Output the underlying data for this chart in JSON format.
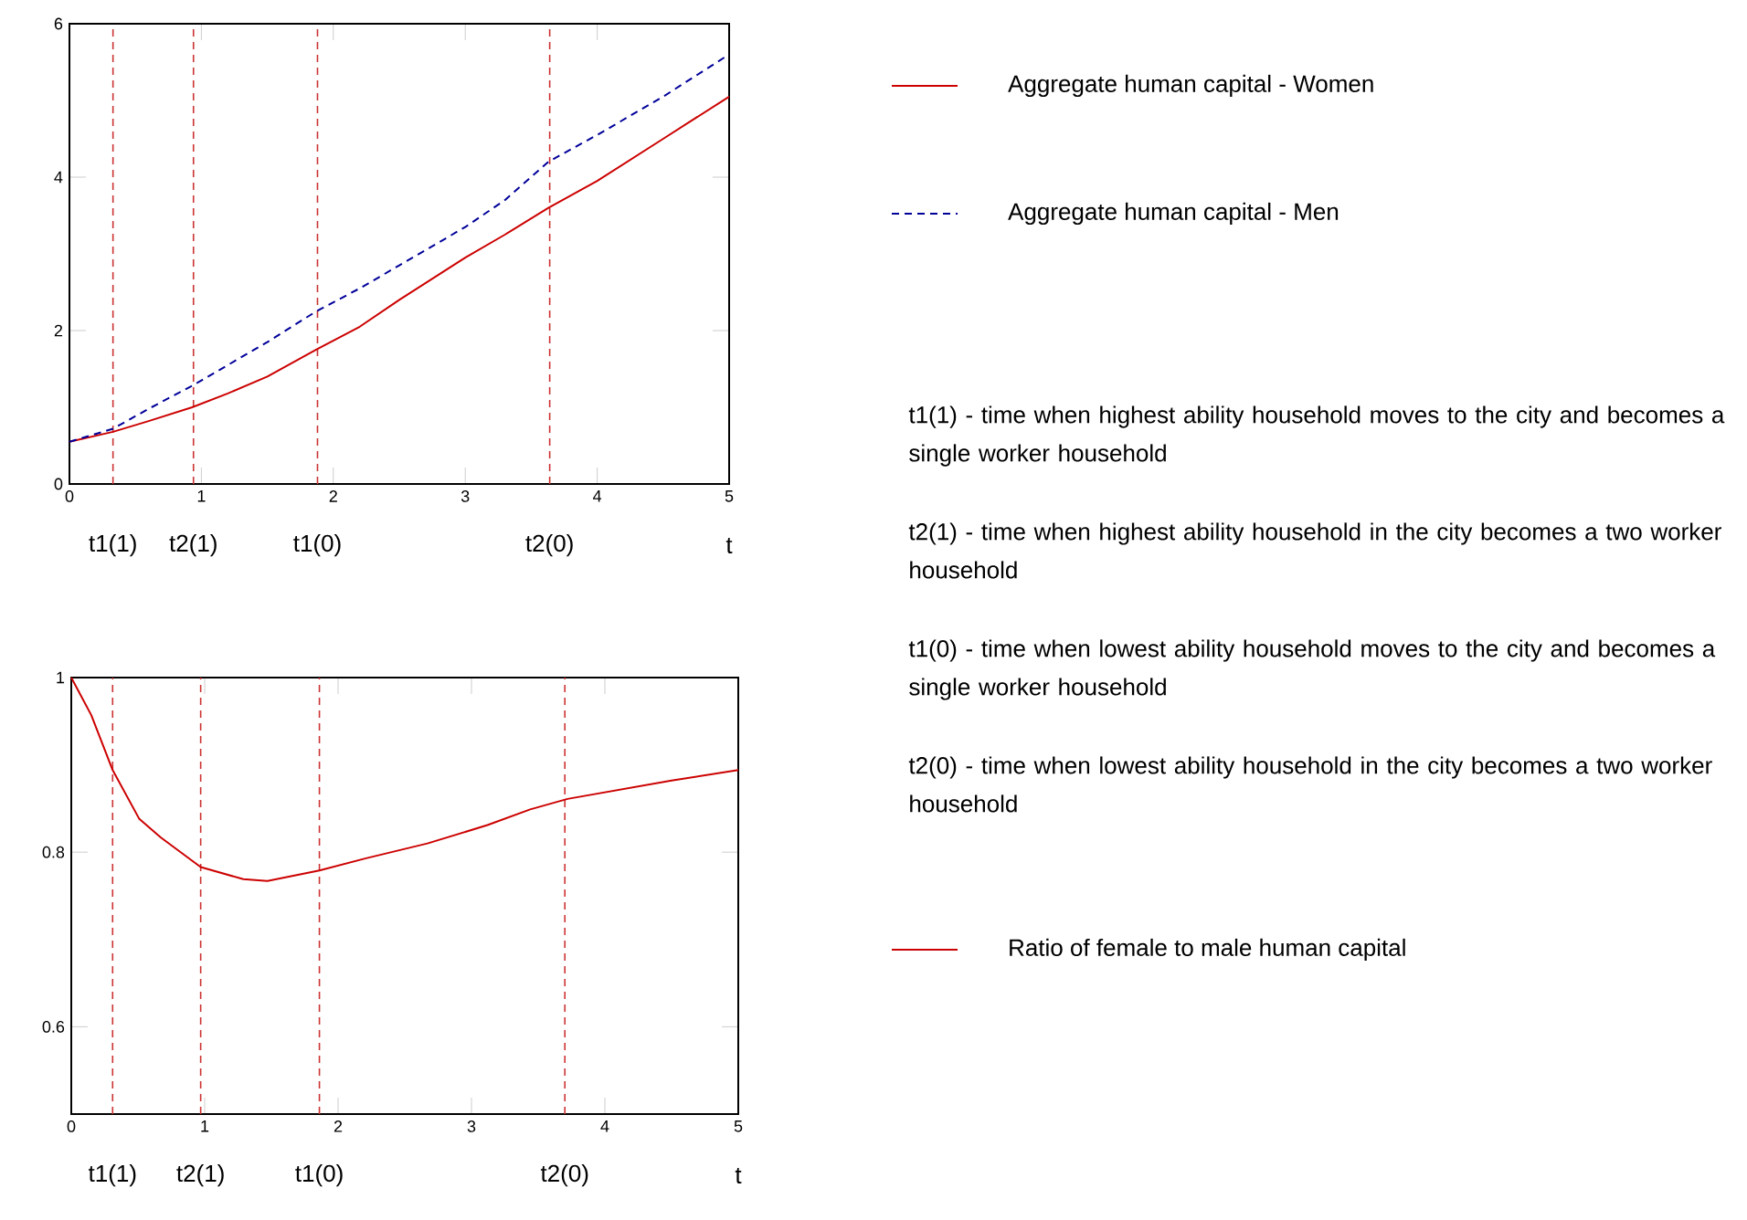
{
  "chart_data": [
    {
      "type": "line",
      "xlabel": "t",
      "xlim": [
        0,
        5
      ],
      "xticks": [
        0,
        1,
        2,
        3,
        4,
        5
      ],
      "ylim": [
        0,
        6
      ],
      "yticks": [
        0,
        2,
        4,
        6
      ],
      "legend": "right",
      "x": [
        0,
        0.33,
        0.6,
        0.93,
        1.2,
        1.5,
        1.87,
        2.2,
        2.5,
        3,
        3.3,
        3.63,
        4,
        4.5,
        5
      ],
      "series": [
        {
          "name": "Aggregate human capital - Women",
          "color": "#cc0000",
          "line_style": "solid",
          "values": [
            0.55,
            0.68,
            0.82,
            1.0,
            1.18,
            1.4,
            1.75,
            2.05,
            2.4,
            2.95,
            3.25,
            3.6,
            3.95,
            4.5,
            5.05
          ]
        },
        {
          "name": "Aggregate human capital - Men",
          "color": "#000099",
          "line_style": "dashed",
          "values": [
            0.55,
            0.72,
            0.98,
            1.28,
            1.55,
            1.85,
            2.25,
            2.55,
            2.85,
            3.35,
            3.7,
            4.2,
            4.55,
            5.05,
            5.6
          ]
        }
      ],
      "ref_lines": [
        {
          "axis": "x",
          "value": 0.33,
          "label": "t1(1)",
          "color": "#cc3333",
          "line_style": "dashed"
        },
        {
          "axis": "x",
          "value": 0.94,
          "label": "t2(1)",
          "color": "#cc3333",
          "line_style": "dashed"
        },
        {
          "axis": "x",
          "value": 1.88,
          "label": "t1(0)",
          "color": "#cc3333",
          "line_style": "dashed"
        },
        {
          "axis": "x",
          "value": 3.64,
          "label": "t2(0)",
          "color": "#cc3333",
          "line_style": "dashed"
        }
      ],
      "annotations": [
        "t1(1) - time when highest ability household moves to the city and becomes a single worker household",
        "t2(1) - time when highest ability household in the city becomes a two worker household",
        "t1(0) - time when lowest ability household moves to the city and becomes a single worker household",
        "t2(0) - time when lowest ability household in the city becomes a two worker household"
      ]
    },
    {
      "type": "line",
      "xlabel": "t",
      "xlim": [
        0,
        5
      ],
      "xticks": [
        0,
        1,
        2,
        3,
        4,
        5
      ],
      "ylim": [
        0.5,
        1
      ],
      "yticks": [
        0.6,
        0.8,
        1
      ],
      "legend": "right",
      "x": [
        0,
        0.15,
        0.31,
        0.51,
        0.67,
        0.97,
        1.29,
        1.47,
        1.86,
        2.21,
        2.67,
        3.12,
        3.44,
        3.72,
        4.5,
        5
      ],
      "series": [
        {
          "name": "Ratio of female to male human capital",
          "color": "#cc0000",
          "line_style": "solid",
          "values": [
            1.0,
            0.957,
            0.894,
            0.838,
            0.817,
            0.783,
            0.769,
            0.767,
            0.779,
            0.793,
            0.81,
            0.831,
            0.849,
            0.861,
            0.882,
            0.894
          ]
        }
      ],
      "ref_lines": [
        {
          "axis": "x",
          "value": 0.31,
          "label": "t1(1)",
          "color": "#cc3333",
          "line_style": "dashed"
        },
        {
          "axis": "x",
          "value": 0.97,
          "label": "t2(1)",
          "color": "#cc3333",
          "line_style": "dashed"
        },
        {
          "axis": "x",
          "value": 1.86,
          "label": "t1(0)",
          "color": "#cc3333",
          "line_style": "dashed"
        },
        {
          "axis": "x",
          "value": 3.7,
          "label": "t2(0)",
          "color": "#cc3333",
          "line_style": "dashed"
        }
      ]
    }
  ]
}
